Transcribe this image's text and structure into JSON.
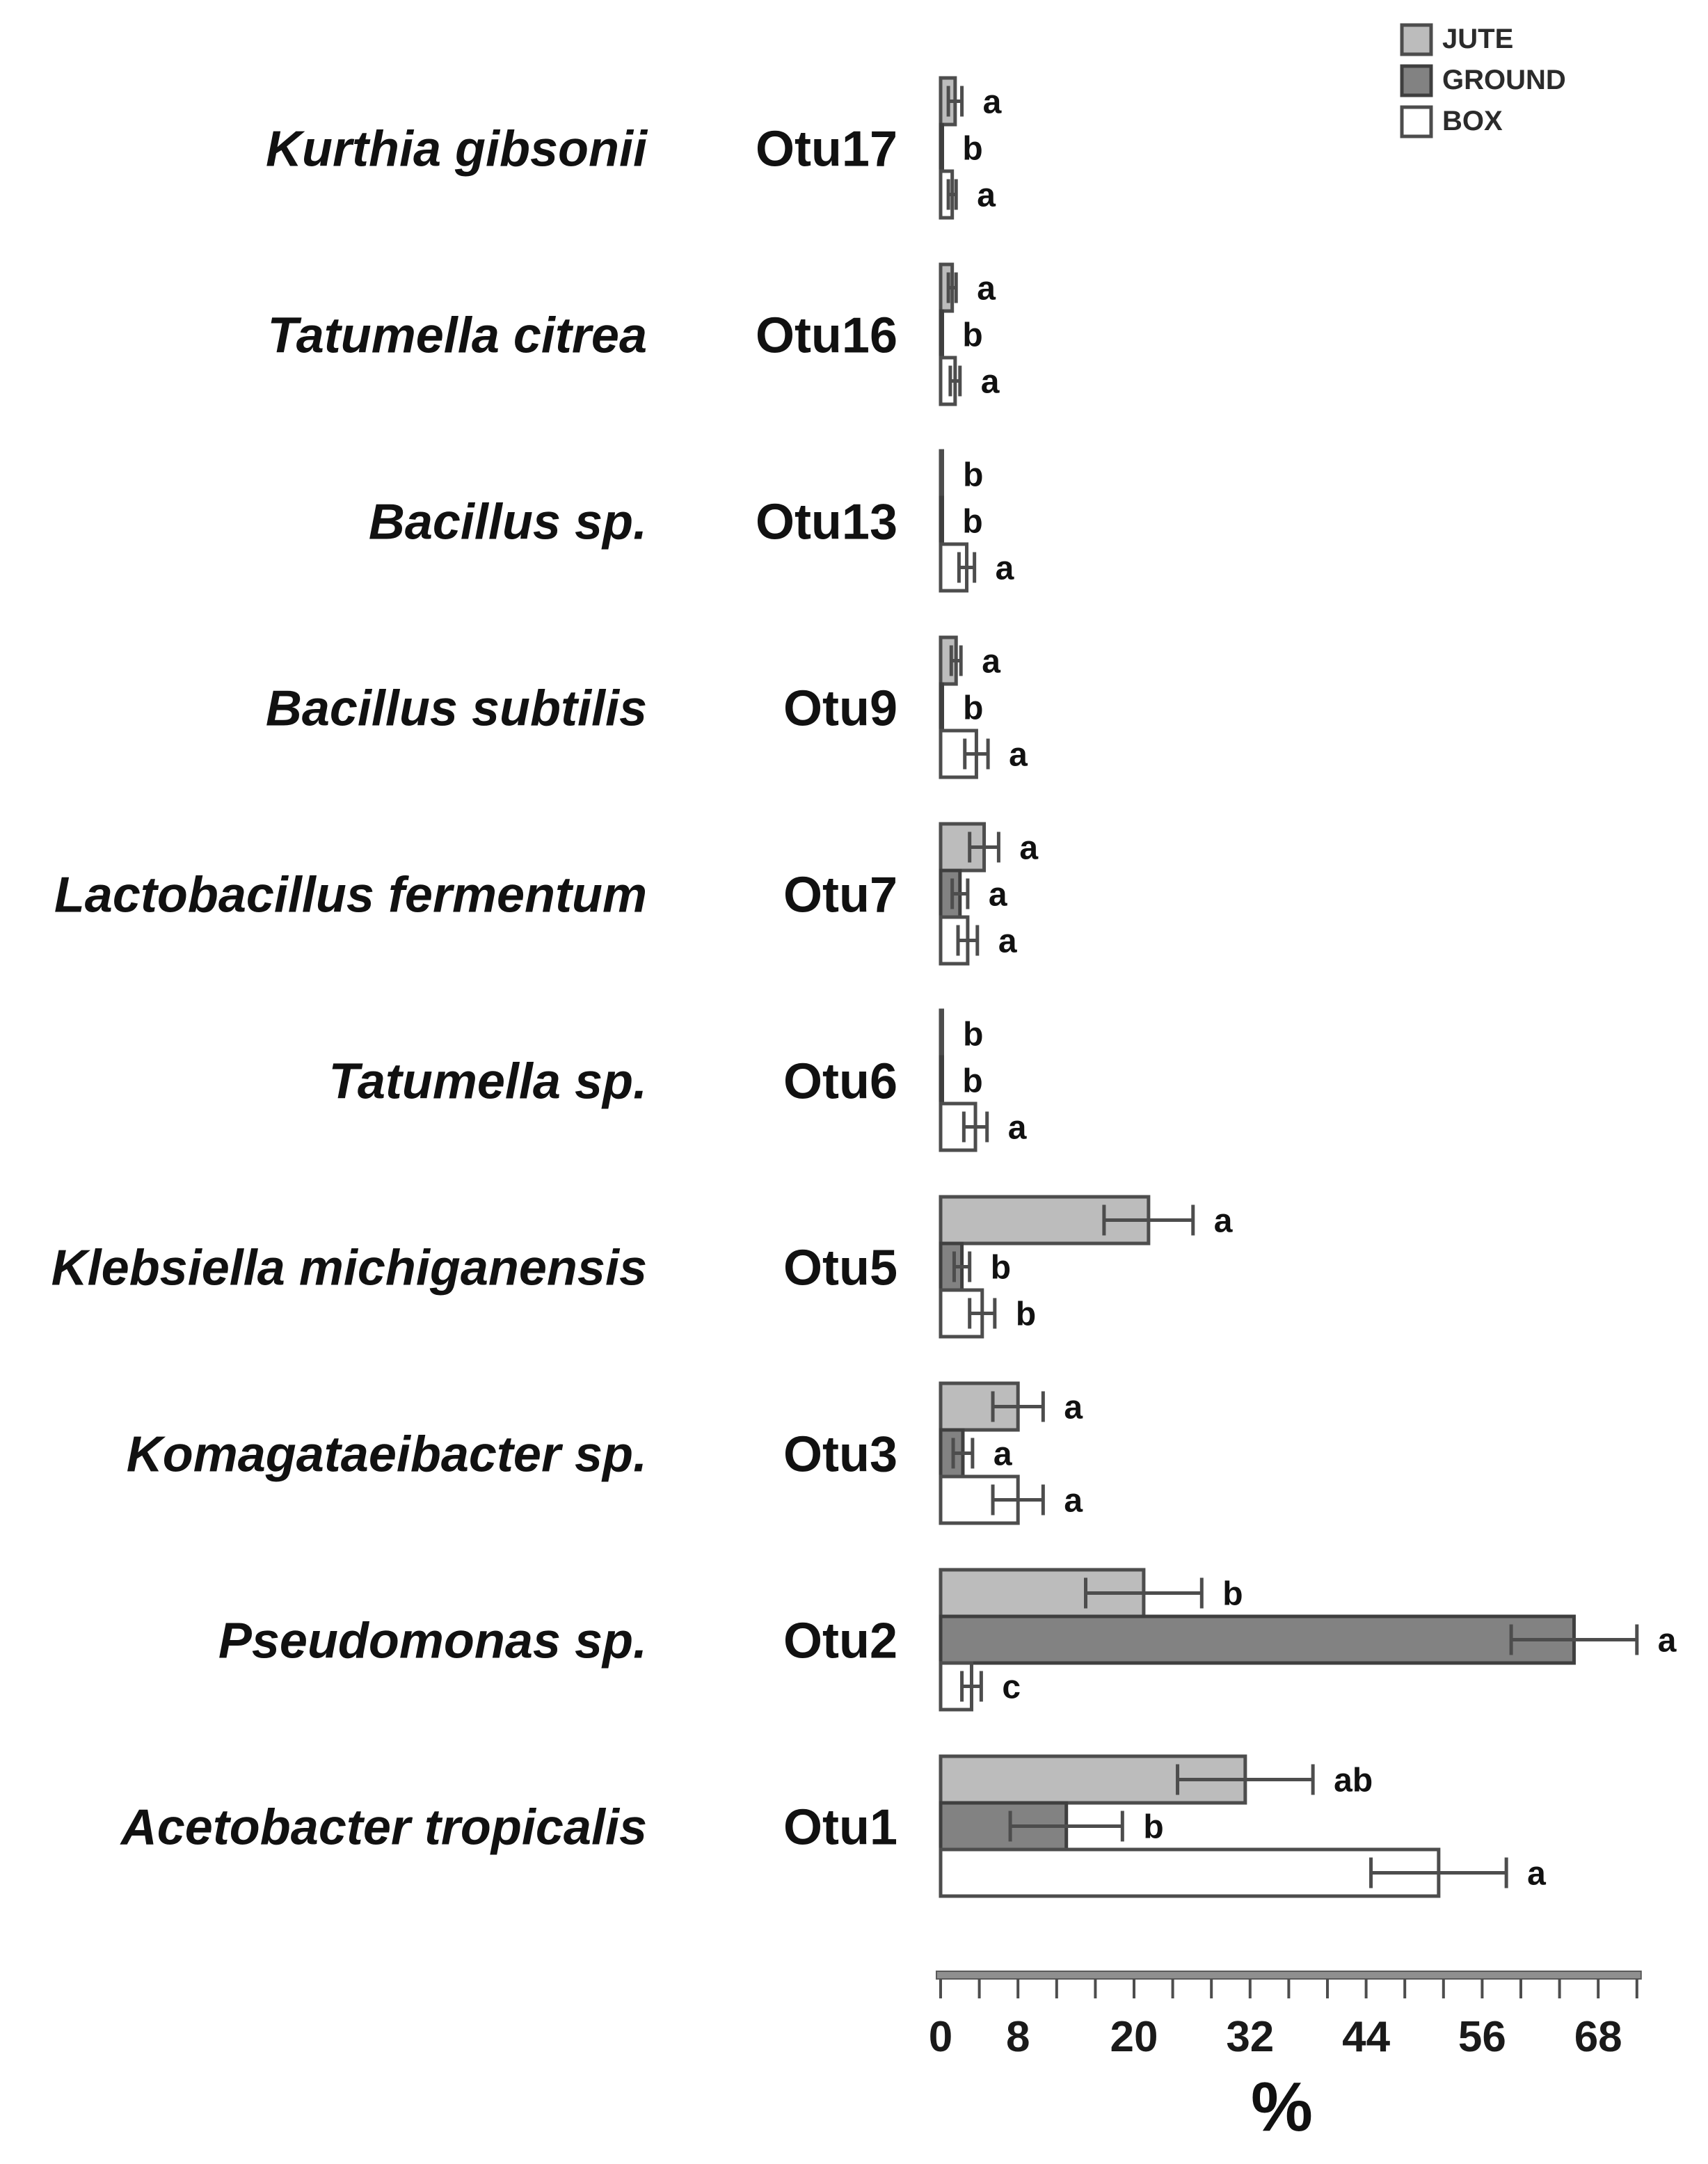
{
  "legend": {
    "items": [
      {
        "label": "JUTE",
        "fill": "#bcbcbc",
        "border": "#4d4d4d"
      },
      {
        "label": "GROUND",
        "fill": "#828282",
        "border": "#3f3f3f"
      },
      {
        "label": "BOX",
        "fill": "#ffffff",
        "border": "#4d4d4d"
      }
    ],
    "position": "top-right"
  },
  "chart_data": {
    "type": "bar",
    "orientation": "horizontal",
    "title": "",
    "xlabel": "%",
    "ylabel": "",
    "xlim": [
      0,
      72
    ],
    "x_tick_step": 4,
    "x_tick_labels": [
      0,
      8,
      20,
      32,
      44,
      56,
      68
    ],
    "grid": false,
    "error_bars": true,
    "series_order": [
      "JUTE",
      "GROUND",
      "BOX"
    ],
    "groups": [
      {
        "species": "Kurthia gibsonii",
        "otu": "Otu17",
        "bars": [
          {
            "series": "JUTE",
            "value": 1.5,
            "error": 0.7,
            "letter": "a"
          },
          {
            "series": "GROUND",
            "value": 0.1,
            "error": 0,
            "letter": "b"
          },
          {
            "series": "BOX",
            "value": 1.2,
            "error": 0.4,
            "letter": "a"
          }
        ]
      },
      {
        "species": "Tatumella citrea",
        "otu": "Otu16",
        "bars": [
          {
            "series": "JUTE",
            "value": 1.2,
            "error": 0.4,
            "letter": "a"
          },
          {
            "series": "GROUND",
            "value": 0.1,
            "error": 0,
            "letter": "b"
          },
          {
            "series": "BOX",
            "value": 1.5,
            "error": 0.5,
            "letter": "a"
          }
        ]
      },
      {
        "species": "Bacillus sp.",
        "otu": "Otu13",
        "bars": [
          {
            "series": "JUTE",
            "value": 0.15,
            "error": 0,
            "letter": "b"
          },
          {
            "series": "GROUND",
            "value": 0.1,
            "error": 0,
            "letter": "b"
          },
          {
            "series": "BOX",
            "value": 2.7,
            "error": 0.8,
            "letter": "a"
          }
        ]
      },
      {
        "species": "Bacillus subtilis",
        "otu": "Otu9",
        "bars": [
          {
            "series": "JUTE",
            "value": 1.6,
            "error": 0.5,
            "letter": "a"
          },
          {
            "series": "GROUND",
            "value": 0.15,
            "error": 0,
            "letter": "b"
          },
          {
            "series": "BOX",
            "value": 3.7,
            "error": 1.2,
            "letter": "a"
          }
        ]
      },
      {
        "species": "Lactobacillus fermentum",
        "otu": "Otu7",
        "bars": [
          {
            "series": "JUTE",
            "value": 4.5,
            "error": 1.5,
            "letter": "a"
          },
          {
            "series": "GROUND",
            "value": 2.0,
            "error": 0.8,
            "letter": "a"
          },
          {
            "series": "BOX",
            "value": 2.8,
            "error": 1.0,
            "letter": "a"
          }
        ]
      },
      {
        "species": "Tatumella sp.",
        "otu": "Otu6",
        "bars": [
          {
            "series": "JUTE",
            "value": 0.15,
            "error": 0,
            "letter": "b"
          },
          {
            "series": "GROUND",
            "value": 0.1,
            "error": 0,
            "letter": "b"
          },
          {
            "series": "BOX",
            "value": 3.6,
            "error": 1.2,
            "letter": "a"
          }
        ]
      },
      {
        "species": "Klebsiella michiganensis",
        "otu": "Otu5",
        "bars": [
          {
            "series": "JUTE",
            "value": 21.5,
            "error": 4.6,
            "letter": "a"
          },
          {
            "series": "GROUND",
            "value": 2.2,
            "error": 0.8,
            "letter": "b"
          },
          {
            "series": "BOX",
            "value": 4.3,
            "error": 1.3,
            "letter": "b"
          }
        ]
      },
      {
        "species": "Komagataeibacter sp.",
        "otu": "Otu3",
        "bars": [
          {
            "series": "JUTE",
            "value": 8.0,
            "error": 2.6,
            "letter": "a"
          },
          {
            "series": "GROUND",
            "value": 2.3,
            "error": 1.0,
            "letter": "a"
          },
          {
            "series": "BOX",
            "value": 8.0,
            "error": 2.6,
            "letter": "a"
          }
        ]
      },
      {
        "species": "Pseudomonas sp.",
        "otu": "Otu2",
        "bars": [
          {
            "series": "JUTE",
            "value": 21.0,
            "error": 6.0,
            "letter": "b"
          },
          {
            "series": "GROUND",
            "value": 65.5,
            "error": 6.5,
            "letter": "a"
          },
          {
            "series": "BOX",
            "value": 3.2,
            "error": 1.0,
            "letter": "c"
          }
        ]
      },
      {
        "species": "Acetobacter tropicalis",
        "otu": "Otu1",
        "bars": [
          {
            "series": "JUTE",
            "value": 31.5,
            "error": 7.0,
            "letter": "ab"
          },
          {
            "series": "GROUND",
            "value": 13.0,
            "error": 5.8,
            "letter": "b"
          },
          {
            "series": "BOX",
            "value": 51.5,
            "error": 7.0,
            "letter": "a"
          }
        ]
      }
    ]
  },
  "colors": {
    "axis_line": "#8f8f8f",
    "tick": "#4d4d4d",
    "error_bar": "#4d4d4d",
    "text": "#111111"
  }
}
